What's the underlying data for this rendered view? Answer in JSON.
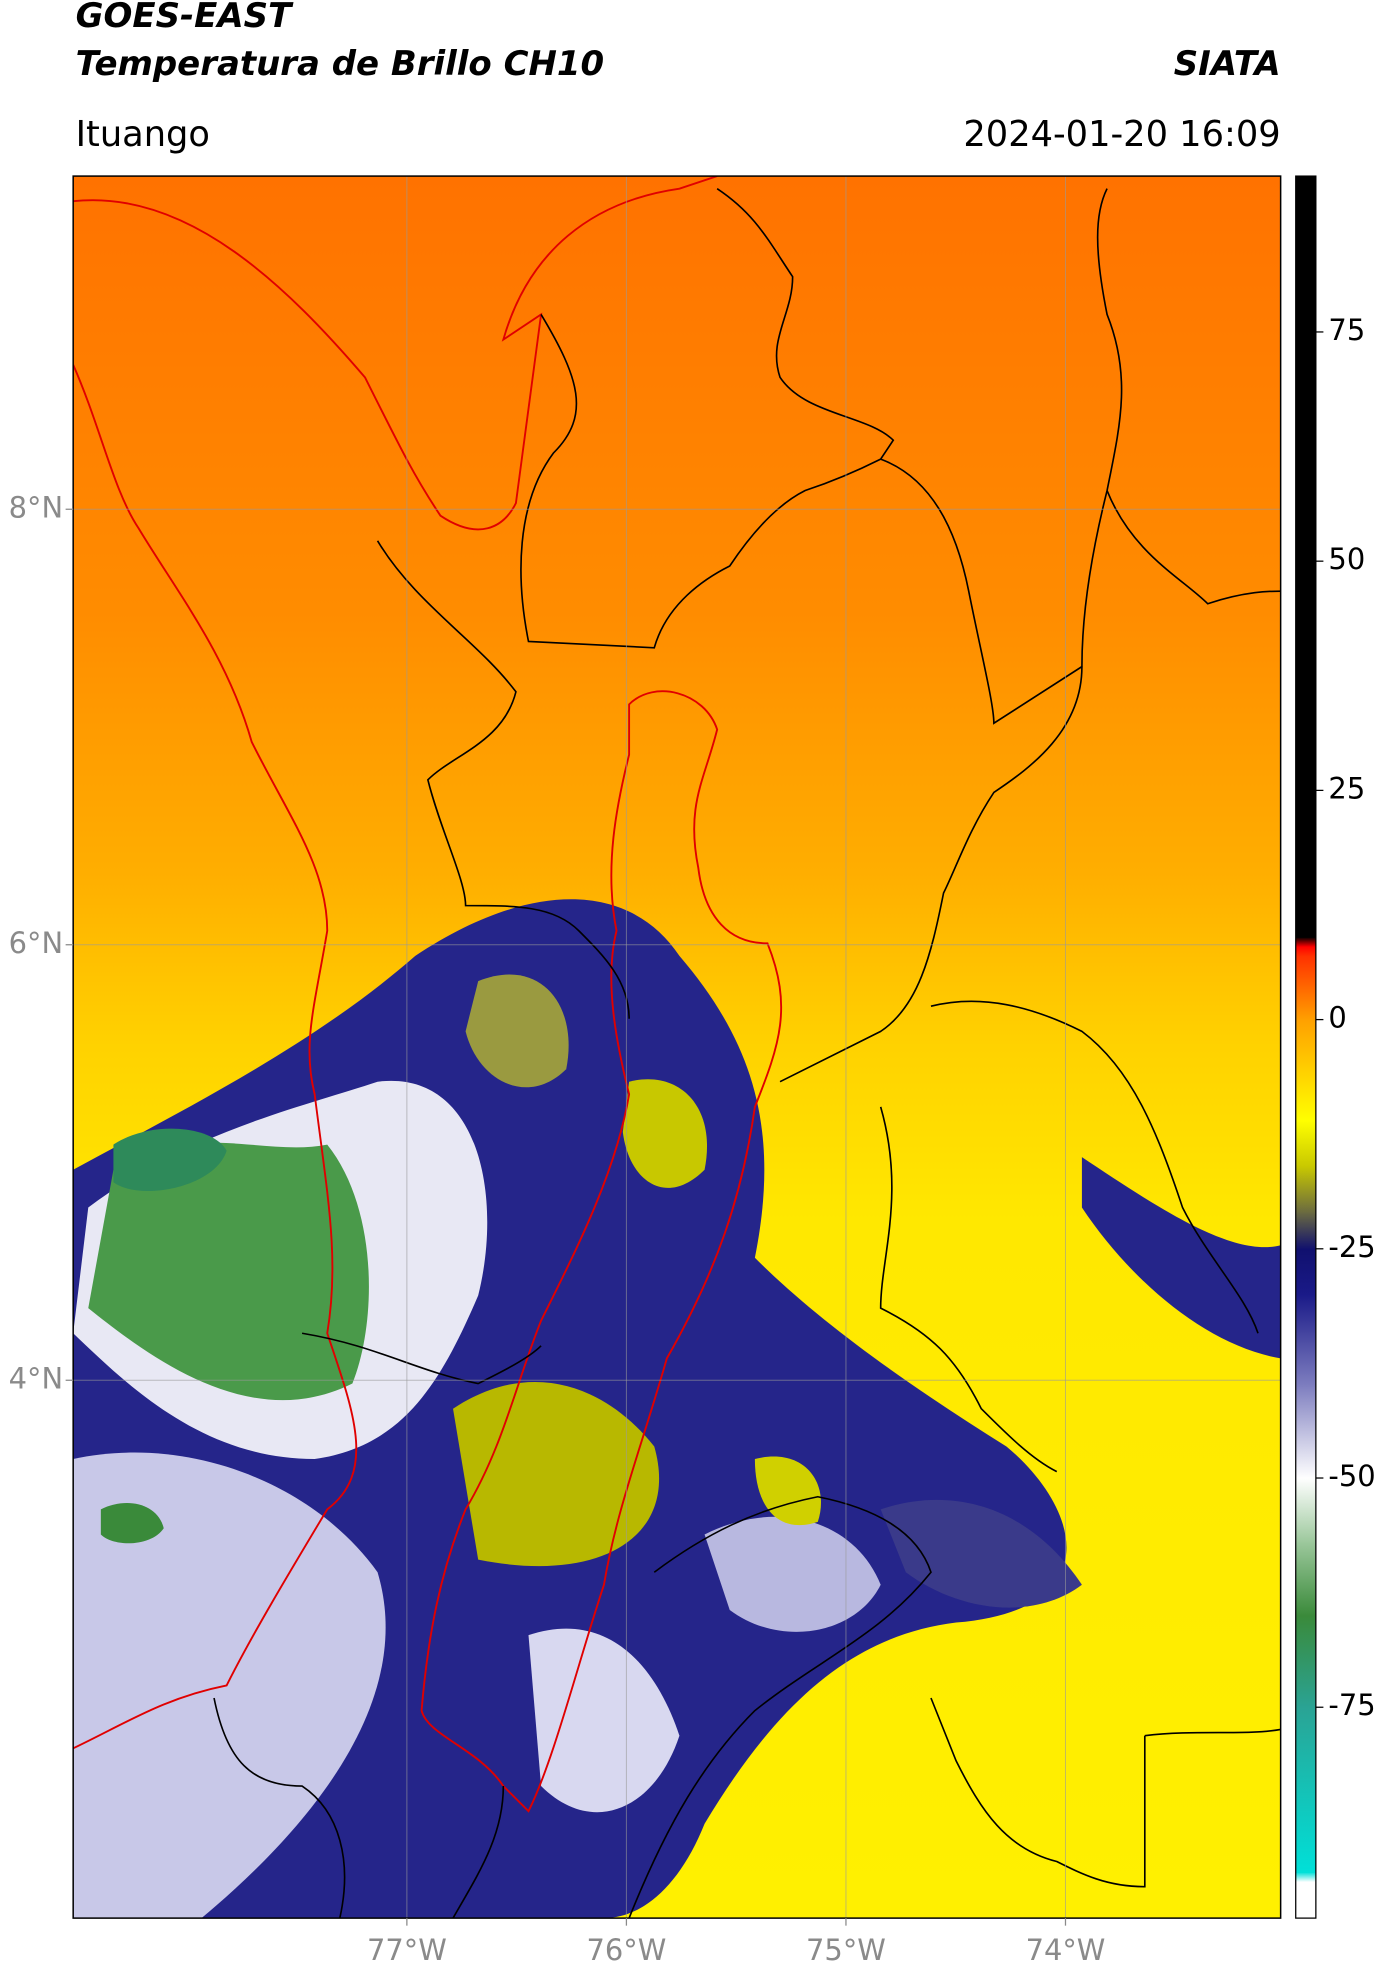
{
  "chart_data": {
    "type": "map",
    "title": "GOES-EAST",
    "subtitle": "Temperatura de Brillo CH10",
    "source": "SIATA",
    "location": "Ituango",
    "datetime": "2024-01-20 16:09",
    "xlim": [
      -78.52,
      -73.02
    ],
    "ylim": [
      1.53,
      9.53
    ],
    "xticks": [
      {
        "value": -77,
        "label": "77°W"
      },
      {
        "value": -76,
        "label": "76°W"
      },
      {
        "value": -75,
        "label": "75°W"
      },
      {
        "value": -74,
        "label": "74°W"
      }
    ],
    "yticks": [
      {
        "value": 8,
        "label": "8°N"
      },
      {
        "value": 6,
        "label": "6°N"
      },
      {
        "value": 4,
        "label": "4°N"
      }
    ],
    "grid": true,
    "colorbar": {
      "lim": [
        -98,
        92
      ],
      "ticks": [
        75,
        50,
        25,
        0,
        -25,
        -50,
        -75
      ],
      "stops": [
        {
          "value": -98,
          "color": "#ffffff"
        },
        {
          "value": -94,
          "color": "#ffffff"
        },
        {
          "value": -93,
          "color": "#00e0d8"
        },
        {
          "value": -75,
          "color": "#2aa394"
        },
        {
          "value": -65,
          "color": "#3a8a3a"
        },
        {
          "value": -57,
          "color": "#9cc89c"
        },
        {
          "value": -50,
          "color": "#ffffff"
        },
        {
          "value": -40,
          "color": "#7f7fc0"
        },
        {
          "value": -30,
          "color": "#1a1a88"
        },
        {
          "value": -25,
          "color": "#10106e"
        },
        {
          "value": -21,
          "color": "#6a6a40"
        },
        {
          "value": -16,
          "color": "#c8c800"
        },
        {
          "value": -11,
          "color": "#ffff00"
        },
        {
          "value": 0,
          "color": "#ffa000"
        },
        {
          "value": 7,
          "color": "#ff3000"
        },
        {
          "value": 8,
          "color": "#ff0000"
        },
        {
          "value": 9,
          "color": "#000000"
        },
        {
          "value": 92,
          "color": "#000000"
        }
      ]
    }
  }
}
